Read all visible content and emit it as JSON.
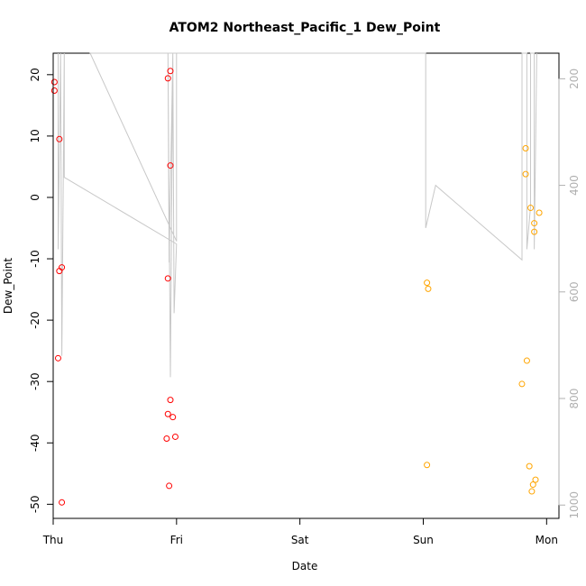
{
  "chart_data": {
    "type": "scatter",
    "title": "ATOM2 Northeast_Pacific_1 Dew_Point",
    "xlabel": "Date",
    "ylabel": "Dew_Point",
    "x_ticks": [
      "Thu",
      "Fri",
      "Sat",
      "Sun",
      "Mon"
    ],
    "xlim": [
      0,
      4.1
    ],
    "ylim": [
      -52.3,
      23.5
    ],
    "y_ticks": [
      20,
      10,
      0,
      -10,
      -20,
      -30,
      -40,
      -50
    ],
    "y2_ticks": [
      200,
      400,
      600,
      800,
      1000
    ],
    "y2lim": [
      1025,
      152
    ],
    "grid": false,
    "series": [
      {
        "color": "#ff0000",
        "points": [
          [
            0.01,
            18.8
          ],
          [
            0.01,
            17.4
          ],
          [
            0.05,
            9.5
          ],
          [
            0.05,
            -12.0
          ],
          [
            0.07,
            -11.4
          ],
          [
            0.04,
            -26.2
          ],
          [
            0.07,
            -49.7
          ],
          [
            0.93,
            19.4
          ],
          [
            0.95,
            20.6
          ],
          [
            0.95,
            5.2
          ],
          [
            0.93,
            -13.2
          ],
          [
            0.95,
            -33.0
          ],
          [
            0.93,
            -35.3
          ],
          [
            0.97,
            -35.8
          ],
          [
            0.92,
            -39.3
          ],
          [
            0.99,
            -39.0
          ],
          [
            0.94,
            -47.0
          ]
        ]
      },
      {
        "color": "#ffa500",
        "points": [
          [
            3.03,
            -13.9
          ],
          [
            3.04,
            -14.9
          ],
          [
            3.03,
            -43.6
          ],
          [
            3.83,
            8.0
          ],
          [
            3.83,
            3.8
          ],
          [
            3.87,
            -1.7
          ],
          [
            3.94,
            -2.5
          ],
          [
            3.9,
            -4.2
          ],
          [
            3.9,
            -5.6
          ],
          [
            3.84,
            -26.6
          ],
          [
            3.8,
            -30.4
          ],
          [
            3.86,
            -43.8
          ],
          [
            3.89,
            -46.8
          ],
          [
            3.91,
            -46.0
          ],
          [
            3.88,
            -47.9
          ]
        ]
      },
      {
        "color": "#c8c8c8",
        "axis": "right",
        "points": [
          [
            0.04,
            150
          ],
          [
            0.04,
            520
          ],
          [
            0.06,
            150
          ],
          [
            0.07,
            720
          ],
          [
            0.09,
            150
          ],
          [
            0.09,
            385
          ],
          [
            1.0,
            510
          ],
          [
            0.98,
            640
          ],
          [
            0.97,
            150
          ],
          [
            0.94,
            545
          ],
          [
            0.93,
            150
          ],
          [
            0.95,
            760
          ],
          [
            0.97,
            150
          ],
          [
            1.0,
            150
          ],
          [
            1.0,
            505
          ],
          [
            0.3,
            150
          ],
          [
            3.02,
            150
          ],
          [
            3.02,
            480
          ],
          [
            3.1,
            400
          ],
          [
            3.8,
            540
          ],
          [
            3.8,
            150
          ],
          [
            3.84,
            150
          ],
          [
            3.84,
            520
          ],
          [
            3.87,
            440
          ],
          [
            3.87,
            150
          ],
          [
            3.9,
            150
          ],
          [
            3.9,
            520
          ],
          [
            3.92,
            150
          ]
        ]
      }
    ]
  }
}
